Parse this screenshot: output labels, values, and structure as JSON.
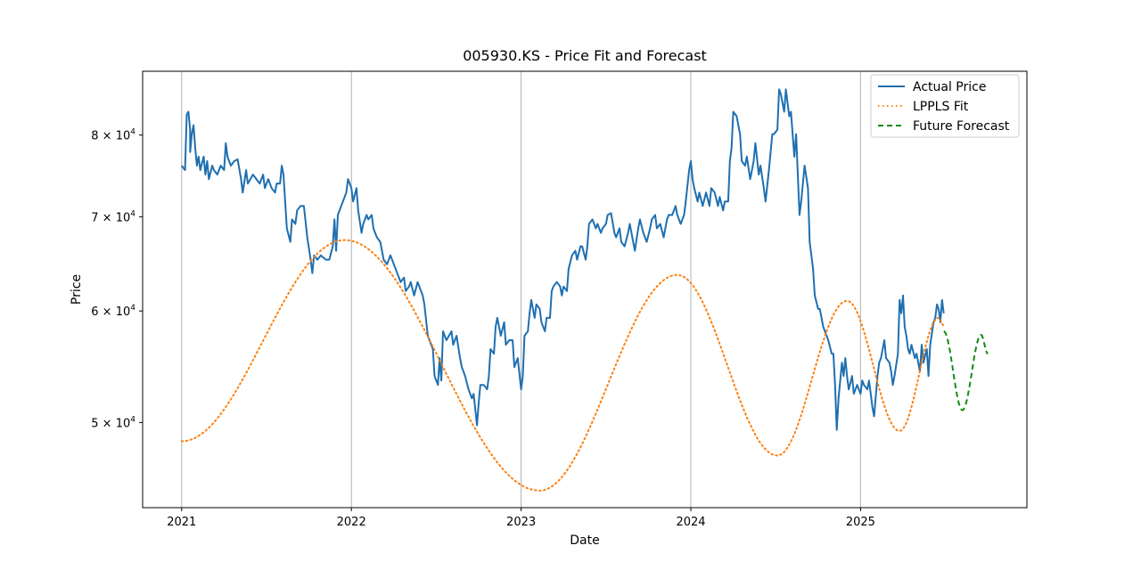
{
  "chart_data": {
    "type": "line",
    "title": "005930.KS - Price Fit and Forecast",
    "xlabel": "Date",
    "ylabel": "Price",
    "y_scale": "log",
    "xlim": [
      2020.77,
      2025.98
    ],
    "ylim": [
      43500,
      88800
    ],
    "grid": "vertical gridlines at x ticks",
    "legend_position": "upper right",
    "x_ticks": [
      {
        "value": 2021,
        "label": "2021"
      },
      {
        "value": 2022,
        "label": "2022"
      },
      {
        "value": 2023,
        "label": "2023"
      },
      {
        "value": 2024,
        "label": "2024"
      },
      {
        "value": 2025,
        "label": "2025"
      }
    ],
    "y_ticks": [
      {
        "value": 50000,
        "mant": "5",
        "base": "10",
        "exp": "4"
      },
      {
        "value": 60000,
        "mant": "6",
        "base": "10",
        "exp": "4"
      },
      {
        "value": 70000,
        "mant": "7",
        "base": "10",
        "exp": "4"
      },
      {
        "value": 80000,
        "mant": "8",
        "base": "10",
        "exp": "4"
      }
    ],
    "series": [
      {
        "name": "Actual Price",
        "color": "#1f6fb0",
        "style": "solid",
        "x": [
          2021.0,
          2021.02,
          2021.03,
          2021.04,
          2021.05,
          2021.05,
          2021.06,
          2021.07,
          2021.08,
          2021.09,
          2021.1,
          2021.11,
          2021.13,
          2021.14,
          2021.15,
          2021.16,
          2021.18,
          2021.19,
          2021.21,
          2021.23,
          2021.25,
          2021.26,
          2021.27,
          2021.29,
          2021.31,
          2021.33,
          2021.35,
          2021.36,
          2021.38,
          2021.39,
          2021.42,
          2021.44,
          2021.46,
          2021.48,
          2021.49,
          2021.51,
          2021.53,
          2021.55,
          2021.56,
          2021.58,
          2021.59,
          2021.6,
          2021.62,
          2021.64,
          2021.65,
          2021.67,
          2021.68,
          2021.7,
          2021.72,
          2021.74,
          2021.76,
          2021.77,
          2021.78,
          2021.8,
          2021.82,
          2021.85,
          2021.87,
          2021.89,
          2021.9,
          2021.91,
          2021.92,
          2021.94,
          2021.96,
          2021.97,
          2021.98,
          2022.0,
          2022.01,
          2022.03,
          2022.04,
          2022.06,
          2022.07,
          2022.09,
          2022.1,
          2022.12,
          2022.13,
          2022.15,
          2022.17,
          2022.19,
          2022.21,
          2022.23,
          2022.25,
          2022.27,
          2022.29,
          2022.31,
          2022.32,
          2022.34,
          2022.35,
          2022.37,
          2022.39,
          2022.4,
          2022.42,
          2022.43,
          2022.45,
          2022.48,
          2022.49,
          2022.51,
          2022.52,
          2022.53,
          2022.54,
          2022.56,
          2022.59,
          2022.6,
          2022.62,
          2022.64,
          2022.65,
          2022.67,
          2022.69,
          2022.71,
          2022.72,
          2022.74,
          2022.75,
          2022.76,
          2022.78,
          2022.8,
          2022.81,
          2022.82,
          2022.84,
          2022.85,
          2022.86,
          2022.88,
          2022.9,
          2022.91,
          2022.93,
          2022.95,
          2022.96,
          2022.98,
          2023.0,
          2023.01,
          2023.02,
          2023.04,
          2023.05,
          2023.06,
          2023.08,
          2023.09,
          2023.11,
          2023.12,
          2023.14,
          2023.15,
          2023.17,
          2023.18,
          2023.19,
          2023.21,
          2023.23,
          2023.24,
          2023.25,
          2023.27,
          2023.28,
          2023.3,
          2023.32,
          2023.33,
          2023.35,
          2023.36,
          2023.38,
          2023.39,
          2023.4,
          2023.42,
          2023.44,
          2023.45,
          2023.47,
          2023.48,
          2023.5,
          2023.51,
          2023.53,
          2023.55,
          2023.56,
          2023.58,
          2023.59,
          2023.61,
          2023.63,
          2023.64,
          2023.66,
          2023.67,
          2023.69,
          2023.7,
          2023.72,
          2023.74,
          2023.76,
          2023.77,
          2023.79,
          2023.8,
          2023.82,
          2023.84,
          2023.86,
          2023.87,
          2023.89,
          2023.91,
          2023.92,
          2023.94,
          2023.96,
          2023.97,
          2023.99,
          2024.0,
          2024.01,
          2024.02,
          2024.04,
          2024.05,
          2024.07,
          2024.09,
          2024.11,
          2024.12,
          2024.14,
          2024.16,
          2024.17,
          2024.19,
          2024.2,
          2024.22,
          2024.23,
          2024.24,
          2024.25,
          2024.27,
          2024.29,
          2024.3,
          2024.32,
          2024.33,
          2024.35,
          2024.37,
          2024.38,
          2024.4,
          2024.41,
          2024.43,
          2024.44,
          2024.46,
          2024.48,
          2024.49,
          2024.51,
          2024.52,
          2024.53,
          2024.55,
          2024.56,
          2024.58,
          2024.59,
          2024.61,
          2024.62,
          2024.64,
          2024.65,
          2024.67,
          2024.69,
          2024.7,
          2024.72,
          2024.73,
          2024.75,
          2024.76,
          2024.78,
          2024.8,
          2024.81,
          2024.83,
          2024.84,
          2024.85,
          2024.86,
          2024.87,
          2024.89,
          2024.9,
          2024.91,
          2024.92,
          2024.93,
          2024.95,
          2024.96,
          2024.98,
          2025.0,
          2025.01,
          2025.02,
          2025.04,
          2025.05,
          2025.07,
          2025.08,
          2025.1,
          2025.11,
          2025.12,
          2025.14,
          2025.15,
          2025.17,
          2025.18,
          2025.19,
          2025.2,
          2025.22,
          2025.23,
          2025.24,
          2025.25,
          2025.26,
          2025.27,
          2025.28,
          2025.29,
          2025.3,
          2025.32,
          2025.33,
          2025.35,
          2025.36,
          2025.37,
          2025.39,
          2025.4,
          2025.41,
          2025.43,
          2025.44,
          2025.45,
          2025.46,
          2025.47,
          2025.48,
          2025.49
        ],
        "y": [
          76100,
          75550,
          82740,
          83110,
          80710,
          77800,
          80120,
          81300,
          78370,
          76100,
          77230,
          75550,
          77230,
          75000,
          76660,
          74440,
          76100,
          75550,
          75000,
          76100,
          75550,
          78950,
          77230,
          76100,
          76660,
          76890,
          74440,
          72820,
          75550,
          73900,
          75000,
          74440,
          73900,
          75000,
          73360,
          74440,
          73360,
          72820,
          73900,
          73900,
          76100,
          75000,
          68680,
          67180,
          69690,
          69180,
          70720,
          71240,
          71240,
          67680,
          65250,
          63830,
          65720,
          65250,
          65720,
          65250,
          65250,
          66690,
          69690,
          66210,
          70200,
          71240,
          72290,
          72820,
          74440,
          73360,
          71760,
          73360,
          70720,
          68170,
          69180,
          70200,
          69690,
          70200,
          68680,
          67680,
          67180,
          65250,
          64770,
          65720,
          64770,
          63830,
          62910,
          63370,
          61990,
          62450,
          62910,
          61540,
          62910,
          62450,
          61540,
          60650,
          57620,
          56370,
          53950,
          53170,
          55550,
          53560,
          58040,
          57200,
          58040,
          56780,
          57620,
          55550,
          54750,
          53950,
          52780,
          52010,
          52400,
          49770,
          51640,
          53170,
          53170,
          52780,
          53950,
          56370,
          55960,
          58470,
          59330,
          57620,
          58900,
          56780,
          57200,
          57200,
          54750,
          55550,
          52780,
          53950,
          57620,
          58040,
          59770,
          61090,
          59330,
          60650,
          60200,
          58900,
          58040,
          59330,
          59330,
          61990,
          62450,
          62910,
          62450,
          61540,
          62450,
          61990,
          64300,
          65720,
          66210,
          65250,
          66690,
          66690,
          65250,
          66690,
          69180,
          69690,
          68680,
          69180,
          68170,
          68680,
          69180,
          70200,
          70400,
          68170,
          67680,
          68680,
          67180,
          66690,
          68170,
          69180,
          67180,
          66210,
          68680,
          69690,
          68170,
          67180,
          68680,
          69690,
          70200,
          68680,
          69180,
          67680,
          69690,
          70200,
          70200,
          71240,
          70200,
          69180,
          70200,
          71760,
          75550,
          76660,
          74440,
          73360,
          71760,
          72820,
          71240,
          72820,
          71240,
          73360,
          72820,
          71240,
          72290,
          70720,
          71760,
          71760,
          76660,
          78370,
          83110,
          82500,
          80120,
          76660,
          76100,
          77230,
          74440,
          76660,
          78950,
          75000,
          76100,
          73360,
          71760,
          75550,
          80120,
          80120,
          80710,
          86200,
          85590,
          83110,
          86200,
          82500,
          83110,
          77230,
          80120,
          70200,
          71760,
          76100,
          73360,
          67180,
          64300,
          61540,
          60200,
          60200,
          58470,
          57620,
          57200,
          55960,
          55960,
          53170,
          49400,
          52010,
          55150,
          53950,
          55550,
          53950,
          52780,
          53950,
          52400,
          53170,
          52400,
          53560,
          53170,
          52780,
          53560,
          51260,
          50510,
          53950,
          55150,
          55550,
          57200,
          55550,
          55150,
          54350,
          53170,
          53950,
          55960,
          61090,
          59770,
          61540,
          58470,
          57620,
          56370,
          55960,
          56780,
          55550,
          55960,
          54350,
          56780,
          55150,
          56370,
          53950,
          56780,
          58900,
          59330,
          60650,
          60200,
          58900,
          61090,
          59770
        ]
      },
      {
        "name": "LPPLS Fit",
        "color": "#ff7f0e",
        "style": "dotted",
        "x": [
          2021.0,
          2021.96,
          2023.11,
          2023.92,
          2024.51,
          2024.92,
          2025.23,
          2025.46,
          2025.49
        ],
        "y": [
          48490,
          67380,
          44730,
          63640,
          47370,
          61000,
          49320,
          59330,
          58600
        ]
      },
      {
        "name": "Future Forecast",
        "color": "#138a13",
        "style": "dashed",
        "x": [
          2025.49,
          2025.6,
          2025.71,
          2025.75
        ],
        "y": [
          58040,
          51020,
          57700,
          55960
        ]
      }
    ]
  }
}
